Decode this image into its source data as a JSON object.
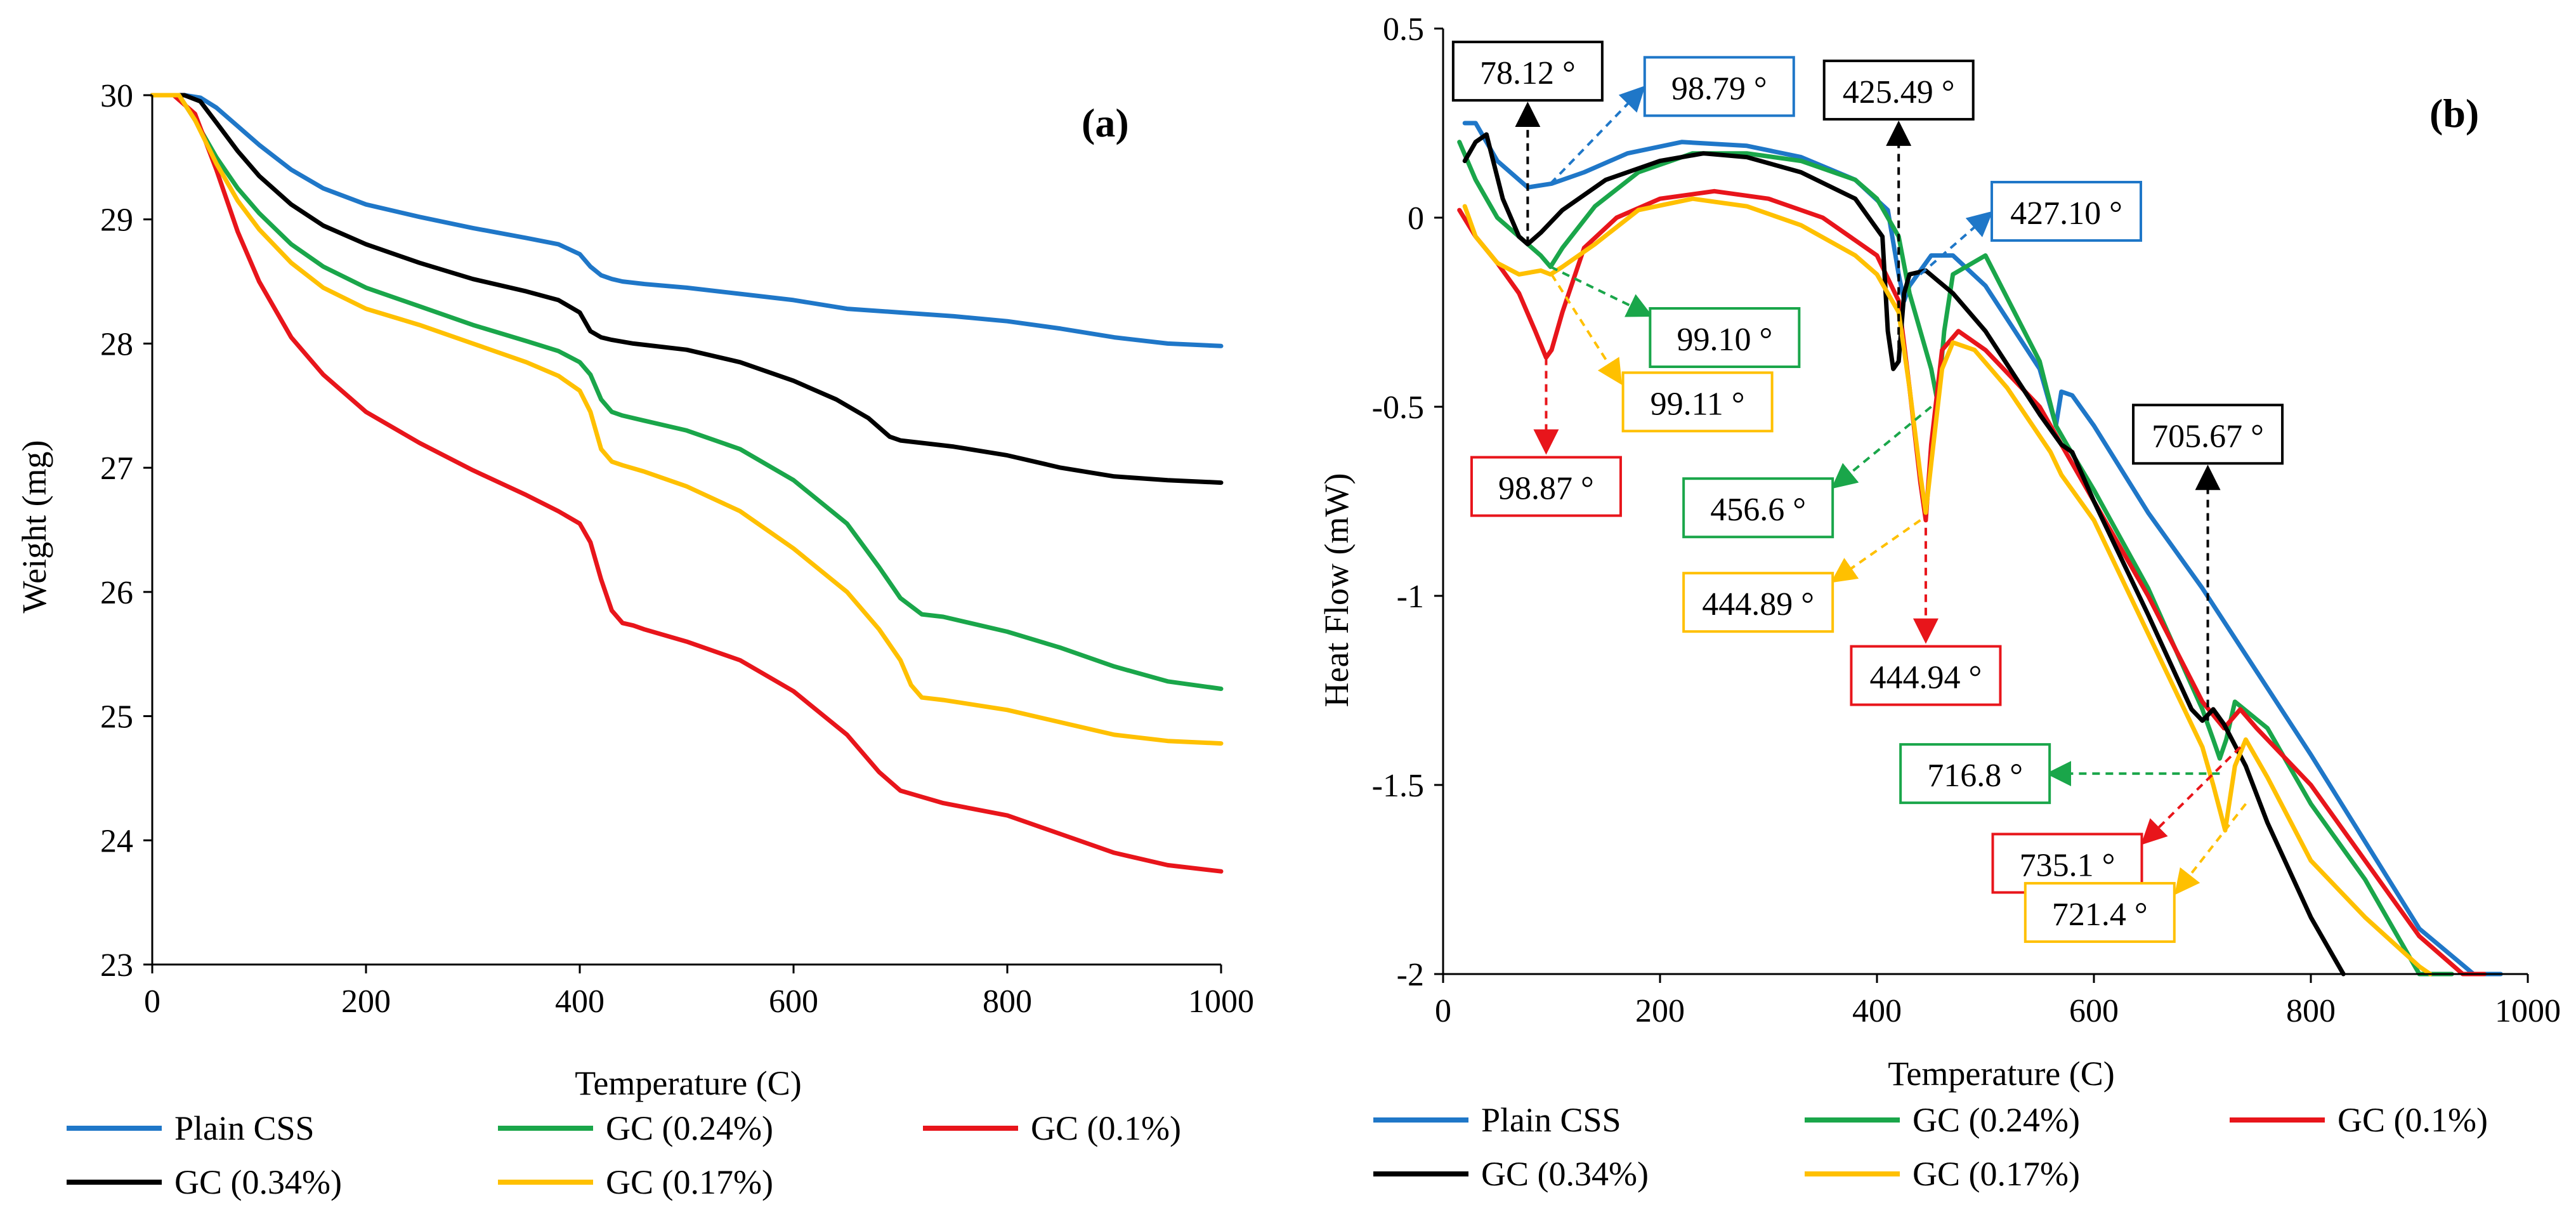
{
  "chart_data": [
    {
      "type": "line",
      "id": "a",
      "panel_label": "(a)",
      "xlabel": "Temperature (C)",
      "ylabel": "Weight (mg)",
      "xlim": [
        0,
        1000
      ],
      "ylim": [
        23,
        30
      ],
      "xticks": [
        "0",
        "200",
        "400",
        "600",
        "800",
        "1000"
      ],
      "yticks": [
        "23",
        "24",
        "25",
        "26",
        "27",
        "28",
        "29",
        "30"
      ],
      "grid": false,
      "series": [
        {
          "name": "Plain CSS",
          "color": "#1f77c8",
          "x": [
            0,
            30,
            45,
            60,
            80,
            100,
            130,
            160,
            200,
            250,
            300,
            350,
            380,
            400,
            410,
            420,
            430,
            440,
            460,
            500,
            550,
            600,
            650,
            700,
            750,
            800,
            850,
            900,
            950,
            1000
          ],
          "y": [
            30,
            30,
            29.98,
            29.9,
            29.75,
            29.6,
            29.4,
            29.25,
            29.12,
            29.02,
            28.93,
            28.85,
            28.8,
            28.72,
            28.62,
            28.55,
            28.52,
            28.5,
            28.48,
            28.45,
            28.4,
            28.35,
            28.28,
            28.25,
            28.22,
            28.18,
            28.12,
            28.05,
            28.0,
            27.98
          ]
        },
        {
          "name": "GC (0.24%)",
          "color": "#1aa64a",
          "x": [
            0,
            25,
            40,
            60,
            80,
            100,
            130,
            160,
            200,
            250,
            300,
            350,
            380,
            400,
            410,
            420,
            430,
            440,
            460,
            500,
            550,
            600,
            650,
            680,
            700,
            720,
            740,
            800,
            850,
            900,
            950,
            1000
          ],
          "y": [
            30,
            30,
            29.8,
            29.5,
            29.25,
            29.05,
            28.8,
            28.62,
            28.45,
            28.3,
            28.15,
            28.02,
            27.94,
            27.85,
            27.75,
            27.55,
            27.45,
            27.42,
            27.38,
            27.3,
            27.15,
            26.9,
            26.55,
            26.2,
            25.95,
            25.82,
            25.8,
            25.68,
            25.55,
            25.4,
            25.28,
            25.22
          ]
        },
        {
          "name": "GC (0.1%)",
          "color": "#e8151b",
          "x": [
            0,
            20,
            40,
            60,
            80,
            100,
            130,
            160,
            200,
            250,
            300,
            350,
            380,
            400,
            410,
            420,
            430,
            440,
            450,
            460,
            500,
            550,
            600,
            650,
            680,
            700,
            720,
            740,
            800,
            850,
            900,
            950,
            1000
          ],
          "y": [
            30,
            30,
            29.85,
            29.4,
            28.9,
            28.5,
            28.05,
            27.75,
            27.45,
            27.2,
            26.98,
            26.78,
            26.65,
            26.55,
            26.4,
            26.1,
            25.85,
            25.75,
            25.73,
            25.7,
            25.6,
            25.45,
            25.2,
            24.85,
            24.55,
            24.4,
            24.35,
            24.3,
            24.2,
            24.05,
            23.9,
            23.8,
            23.75
          ]
        },
        {
          "name": "GC (0.34%)",
          "color": "#000000",
          "x": [
            0,
            30,
            45,
            60,
            80,
            100,
            130,
            160,
            200,
            250,
            300,
            350,
            380,
            400,
            410,
            420,
            430,
            450,
            500,
            550,
            600,
            640,
            670,
            690,
            700,
            720,
            750,
            800,
            850,
            900,
            950,
            1000
          ],
          "y": [
            30,
            30,
            29.95,
            29.78,
            29.55,
            29.35,
            29.12,
            28.95,
            28.8,
            28.65,
            28.52,
            28.42,
            28.35,
            28.25,
            28.1,
            28.05,
            28.03,
            28.0,
            27.95,
            27.85,
            27.7,
            27.55,
            27.4,
            27.25,
            27.22,
            27.2,
            27.17,
            27.1,
            27.0,
            26.93,
            26.9,
            26.88
          ]
        },
        {
          "name": "GC (0.17%)",
          "color": "#ffc000",
          "x": [
            0,
            25,
            40,
            60,
            80,
            100,
            130,
            160,
            200,
            250,
            300,
            350,
            380,
            400,
            410,
            420,
            430,
            440,
            460,
            500,
            550,
            600,
            650,
            680,
            700,
            710,
            720,
            740,
            800,
            850,
            900,
            950,
            1000
          ],
          "y": [
            30,
            30,
            29.8,
            29.45,
            29.15,
            28.92,
            28.65,
            28.45,
            28.28,
            28.15,
            28.0,
            27.85,
            27.74,
            27.62,
            27.45,
            27.15,
            27.05,
            27.02,
            26.97,
            26.85,
            26.65,
            26.35,
            26.0,
            25.7,
            25.45,
            25.25,
            25.15,
            25.13,
            25.05,
            24.95,
            24.85,
            24.8,
            24.78
          ]
        }
      ]
    },
    {
      "type": "line",
      "id": "b",
      "panel_label": "(b)",
      "xlabel": "Temperature (C)",
      "ylabel": "Heat Flow (mW)",
      "xlim": [
        0,
        1000
      ],
      "ylim": [
        -2,
        0.5
      ],
      "xticks": [
        "0",
        "200",
        "400",
        "600",
        "800",
        "1000"
      ],
      "yticks": [
        "0.5",
        "0",
        "-0.5",
        "-1",
        "-1.5",
        "-2"
      ],
      "grid": false,
      "series": [
        {
          "name": "Plain CSS",
          "color": "#1f77c8",
          "x": [
            20,
            30,
            50,
            78,
            100,
            130,
            170,
            220,
            280,
            330,
            380,
            410,
            420,
            425,
            430,
            450,
            470,
            500,
            550,
            565,
            570,
            580,
            600,
            650,
            700,
            750,
            800,
            850,
            900,
            950,
            975
          ],
          "y": [
            0.25,
            0.25,
            0.15,
            0.08,
            0.09,
            0.12,
            0.17,
            0.2,
            0.19,
            0.16,
            0.1,
            0.02,
            -0.15,
            -0.22,
            -0.18,
            -0.1,
            -0.1,
            -0.18,
            -0.4,
            -0.55,
            -0.46,
            -0.47,
            -0.55,
            -0.78,
            -0.98,
            -1.2,
            -1.42,
            -1.65,
            -1.88,
            -2.0,
            -2.0
          ]
        },
        {
          "name": "GC (0.24%)",
          "color": "#1aa64a",
          "x": [
            15,
            30,
            50,
            70,
            90,
            99,
            110,
            140,
            180,
            230,
            280,
            330,
            380,
            400,
            420,
            430,
            440,
            450,
            456,
            462,
            470,
            500,
            550,
            565,
            575,
            600,
            650,
            700,
            710,
            716,
            722,
            730,
            760,
            800,
            850,
            900,
            930
          ],
          "y": [
            0.2,
            0.1,
            0.0,
            -0.05,
            -0.1,
            -0.13,
            -0.08,
            0.03,
            0.12,
            0.17,
            0.17,
            0.15,
            0.1,
            0.05,
            -0.05,
            -0.2,
            -0.3,
            -0.4,
            -0.49,
            -0.3,
            -0.15,
            -0.1,
            -0.38,
            -0.55,
            -0.6,
            -0.72,
            -0.98,
            -1.3,
            -1.38,
            -1.43,
            -1.38,
            -1.28,
            -1.35,
            -1.55,
            -1.75,
            -2.0,
            -2.0
          ]
        },
        {
          "name": "GC (0.1%)",
          "color": "#e8151b",
          "x": [
            15,
            30,
            50,
            70,
            85,
            95,
            100,
            110,
            130,
            160,
            200,
            250,
            300,
            350,
            400,
            420,
            430,
            440,
            445,
            450,
            460,
            475,
            500,
            550,
            600,
            650,
            700,
            720,
            735,
            750,
            800,
            850,
            900,
            940,
            960
          ],
          "y": [
            0.02,
            -0.05,
            -0.12,
            -0.2,
            -0.3,
            -0.37,
            -0.35,
            -0.25,
            -0.08,
            0.0,
            0.05,
            0.07,
            0.05,
            0.0,
            -0.1,
            -0.22,
            -0.45,
            -0.7,
            -0.8,
            -0.6,
            -0.35,
            -0.3,
            -0.35,
            -0.5,
            -0.75,
            -1.0,
            -1.28,
            -1.35,
            -1.3,
            -1.35,
            -1.5,
            -1.7,
            -1.9,
            -2.0,
            -2.0
          ]
        },
        {
          "name": "GC (0.34%)",
          "color": "#000000",
          "x": [
            20,
            30,
            40,
            55,
            70,
            78,
            90,
            110,
            150,
            200,
            240,
            280,
            330,
            380,
            405,
            410,
            415,
            420,
            425,
            430,
            445,
            470,
            500,
            550,
            570,
            580,
            600,
            650,
            690,
            700,
            710,
            720,
            740,
            760,
            800,
            830
          ],
          "y": [
            0.15,
            0.2,
            0.22,
            0.05,
            -0.05,
            -0.07,
            -0.04,
            0.02,
            0.1,
            0.15,
            0.17,
            0.16,
            0.12,
            0.05,
            -0.05,
            -0.3,
            -0.4,
            -0.38,
            -0.2,
            -0.15,
            -0.14,
            -0.2,
            -0.3,
            -0.52,
            -0.6,
            -0.62,
            -0.75,
            -1.05,
            -1.3,
            -1.33,
            -1.3,
            -1.34,
            -1.45,
            -1.6,
            -1.85,
            -2.0
          ]
        },
        {
          "name": "GC (0.17%)",
          "color": "#ffc000",
          "x": [
            20,
            30,
            50,
            70,
            90,
            99,
            110,
            140,
            180,
            230,
            280,
            330,
            380,
            400,
            420,
            430,
            440,
            445,
            450,
            460,
            470,
            490,
            520,
            560,
            570,
            580,
            600,
            650,
            700,
            710,
            721,
            730,
            740,
            760,
            800,
            850,
            900,
            910
          ],
          "y": [
            0.03,
            -0.05,
            -0.12,
            -0.15,
            -0.14,
            -0.15,
            -0.13,
            -0.07,
            0.02,
            0.05,
            0.03,
            -0.02,
            -0.1,
            -0.15,
            -0.25,
            -0.45,
            -0.68,
            -0.78,
            -0.65,
            -0.4,
            -0.33,
            -0.35,
            -0.45,
            -0.62,
            -0.68,
            -0.72,
            -0.8,
            -1.1,
            -1.4,
            -1.5,
            -1.62,
            -1.45,
            -1.38,
            -1.48,
            -1.7,
            -1.85,
            -1.98,
            -2.0
          ]
        }
      ],
      "annotations": [
        {
          "text": "78.12 °",
          "color": "#000000",
          "tx": 78,
          "ty": -0.07,
          "lx": 78,
          "ly": 0.28
        },
        {
          "text": "98.79 °",
          "color": "#1f77c8",
          "tx": 99,
          "ty": 0.09,
          "lx": 180,
          "ly": 0.33
        },
        {
          "text": "425.49 °",
          "color": "#000000",
          "tx": 420,
          "ty": -0.38,
          "lx": 420,
          "ly": 0.23
        },
        {
          "text": "427.10 °",
          "color": "#1f77c8",
          "tx": 440,
          "ty": -0.15,
          "lx": 500,
          "ly": 0.0
        },
        {
          "text": "99.10 °",
          "color": "#1aa64a",
          "tx": 99,
          "ty": -0.13,
          "lx": 185,
          "ly": -0.25
        },
        {
          "text": "99.11 °",
          "color": "#ffc000",
          "tx": 100,
          "ty": -0.15,
          "lx": 160,
          "ly": -0.42
        },
        {
          "text": "98.87 °",
          "color": "#e8151b",
          "tx": 95,
          "ty": -0.37,
          "lx": 95,
          "ly": -0.6
        },
        {
          "text": "456.6 °",
          "color": "#1aa64a",
          "tx": 450,
          "ty": -0.5,
          "lx": 365,
          "ly": -0.7
        },
        {
          "text": "444.89 °",
          "color": "#ffc000",
          "tx": 440,
          "ty": -0.8,
          "lx": 365,
          "ly": -0.95
        },
        {
          "text": "444.94 °",
          "color": "#e8151b",
          "tx": 445,
          "ty": -0.82,
          "lx": 445,
          "ly": -1.1
        },
        {
          "text": "705.67 °",
          "color": "#000000",
          "tx": 705,
          "ty": -1.33,
          "lx": 705,
          "ly": -0.68
        },
        {
          "text": "716.8 °",
          "color": "#1aa64a",
          "tx": 716,
          "ty": -1.47,
          "lx": 565,
          "ly": -1.47
        },
        {
          "text": "735.1 °",
          "color": "#e8151b",
          "tx": 735,
          "ty": -1.4,
          "lx": 650,
          "ly": -1.64
        },
        {
          "text": "721.4 °",
          "color": "#ffc000",
          "tx": 740,
          "ty": -1.55,
          "lx": 680,
          "ly": -1.77
        }
      ]
    }
  ]
}
